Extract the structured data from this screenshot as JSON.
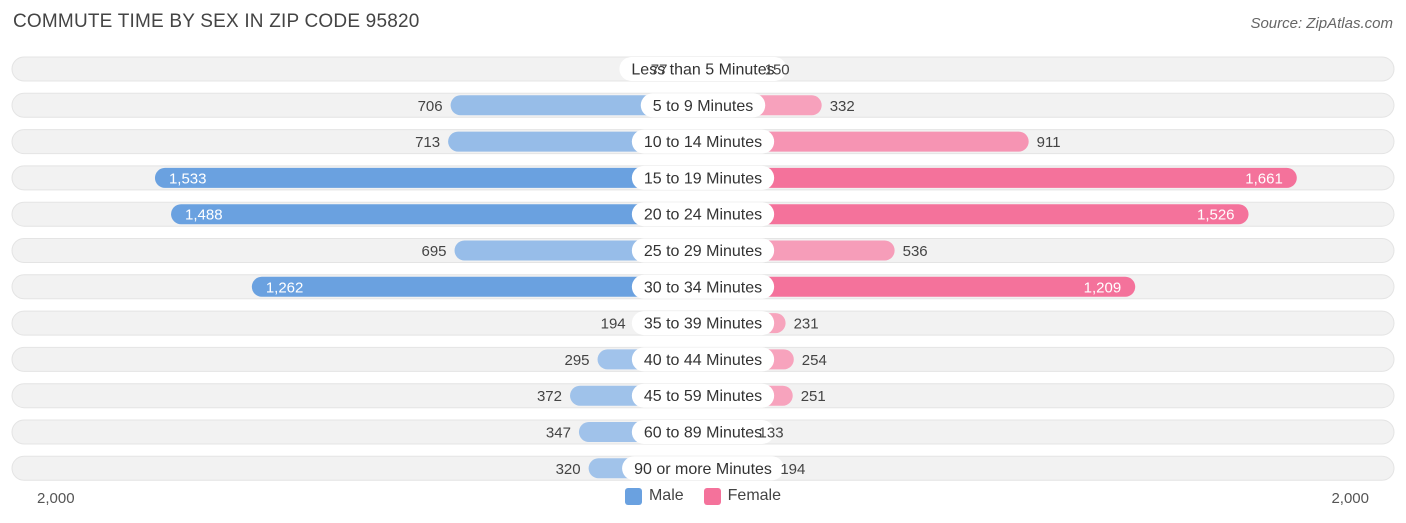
{
  "title": "COMMUTE TIME BY SEX IN ZIP CODE 95820",
  "source": "Source: ZipAtlas.com",
  "axis": {
    "left_label": "2,000",
    "right_label": "2,000"
  },
  "legend": [
    {
      "name": "Male",
      "color": "#6aa1e0"
    },
    {
      "name": "Female",
      "color": "#f4729b"
    }
  ],
  "chart_data": {
    "type": "bar",
    "orientation": "diverging-horizontal",
    "categories": [
      "Less than 5 Minutes",
      "5 to 9 Minutes",
      "10 to 14 Minutes",
      "15 to 19 Minutes",
      "20 to 24 Minutes",
      "25 to 29 Minutes",
      "30 to 34 Minutes",
      "35 to 39 Minutes",
      "40 to 44 Minutes",
      "45 to 59 Minutes",
      "60 to 89 Minutes",
      "90 or more Minutes"
    ],
    "series": [
      {
        "name": "Male",
        "values": [
          77,
          706,
          713,
          1533,
          1488,
          695,
          1262,
          194,
          295,
          372,
          347,
          320
        ],
        "labels": [
          "77",
          "706",
          "713",
          "1,533",
          "1,488",
          "695",
          "1,262",
          "194",
          "295",
          "372",
          "347",
          "320"
        ]
      },
      {
        "name": "Female",
        "values": [
          150,
          332,
          911,
          1661,
          1526,
          536,
          1209,
          231,
          254,
          251,
          133,
          194
        ],
        "labels": [
          "150",
          "332",
          "911",
          "1,661",
          "1,526",
          "536",
          "1,209",
          "231",
          "254",
          "251",
          "133",
          "194"
        ]
      }
    ],
    "xlim": [
      -2000,
      2000
    ],
    "colors": {
      "male_dark": "#6aa1e0",
      "male_light": "#a9c8ec",
      "female_dark": "#f4729b",
      "female_light": "#f7a9c1",
      "track": "#f2f2f2"
    }
  }
}
